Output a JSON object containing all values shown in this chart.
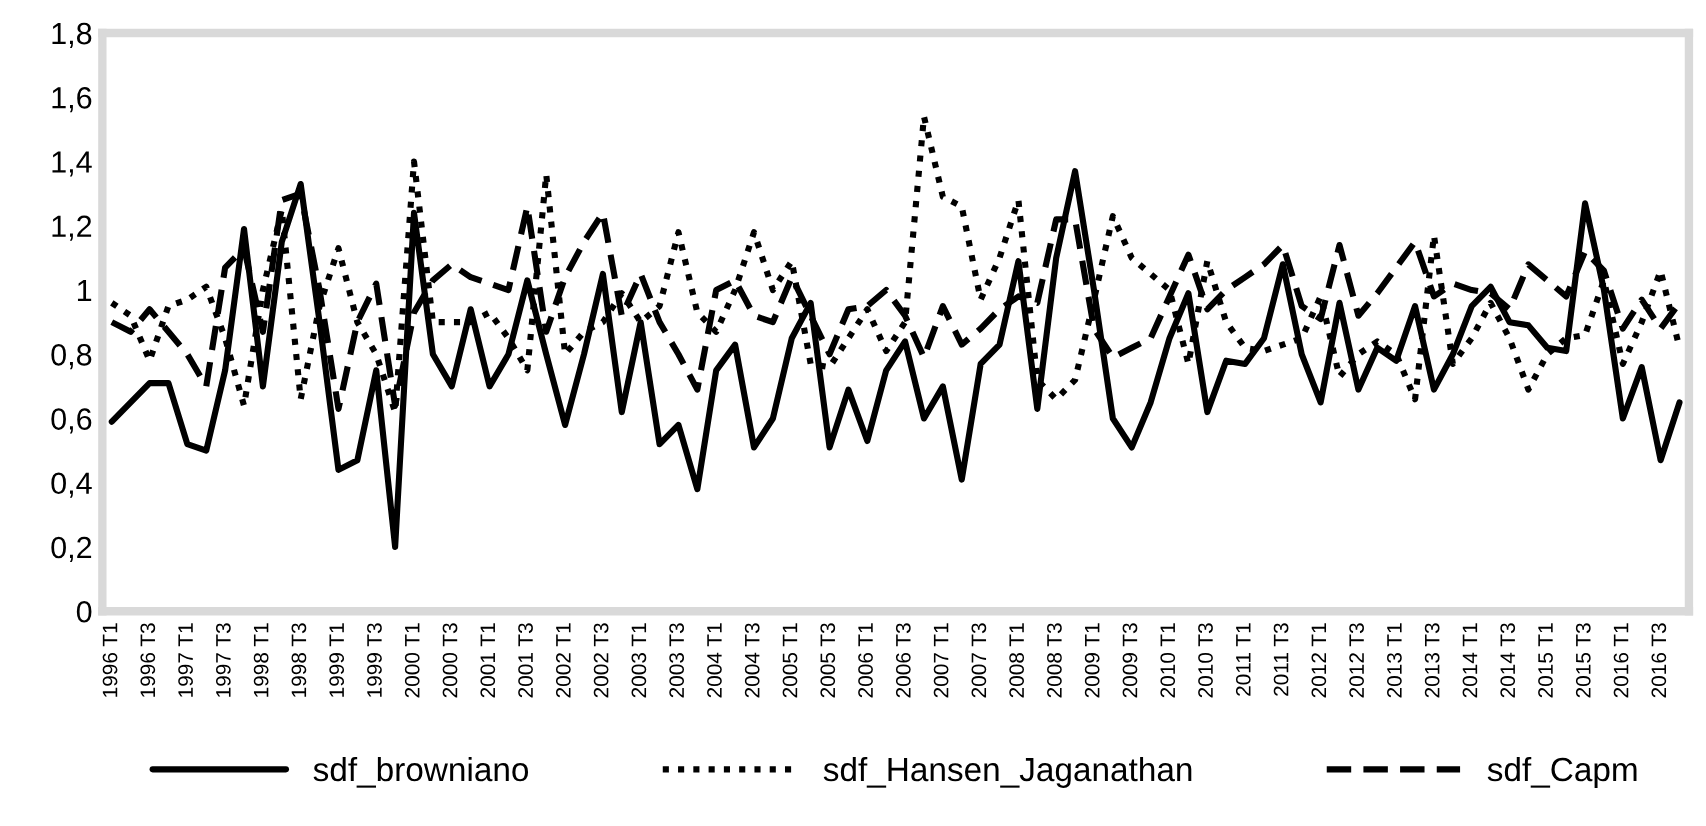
{
  "chart_data": {
    "type": "line",
    "categories": [
      "1996 T1",
      null,
      "1996 T3",
      null,
      "1997 T1",
      null,
      "1997 T3",
      null,
      "1998 T1",
      null,
      "1998 T3",
      null,
      "1999 T1",
      null,
      "1999 T3",
      null,
      "2000 T1",
      null,
      "2000 T3",
      null,
      "2001 T1",
      null,
      "2001 T3",
      null,
      "2002 T1",
      null,
      "2002 T3",
      null,
      "2003 T1",
      null,
      "2003 T3",
      null,
      "2004 T1",
      null,
      "2004 T3",
      null,
      "2005 T1",
      null,
      "2005 T3",
      null,
      "2006 T1",
      null,
      "2006 T3",
      null,
      "2007 T1",
      null,
      "2007 T3",
      null,
      "2008 T1",
      null,
      "2008 T3",
      null,
      "2009 T1",
      null,
      "2009 T3",
      null,
      "2010 T1",
      null,
      "2010 T3",
      null,
      "2011 T1",
      null,
      "2011 T3",
      null,
      "2012 T1",
      null,
      "2012 T3",
      null,
      "2013 T1",
      null,
      "2013 T3",
      null,
      "2014 T1",
      null,
      "2014 T3",
      null,
      "2015 T1",
      null,
      "2015 T3",
      null,
      "2016 T1",
      null,
      "2016 T3",
      null
    ],
    "series": [
      {
        "name": "sdf_browniano",
        "color": "#000000",
        "line_style": "solid",
        "values": [
          0.59,
          0.65,
          0.71,
          0.71,
          0.52,
          0.5,
          0.75,
          1.19,
          0.7,
          1.15,
          1.33,
          0.9,
          0.44,
          0.47,
          0.75,
          0.2,
          1.24,
          0.8,
          0.7,
          0.94,
          0.7,
          0.8,
          1.03,
          0.8,
          0.58,
          0.8,
          1.05,
          0.62,
          0.9,
          0.52,
          0.58,
          0.38,
          0.75,
          0.83,
          0.51,
          0.6,
          0.85,
          0.96,
          0.51,
          0.69,
          0.53,
          0.75,
          0.84,
          0.6,
          0.7,
          0.41,
          0.77,
          0.83,
          1.09,
          0.63,
          1.1,
          1.37,
          1.0,
          0.6,
          0.51,
          0.65,
          0.85,
          0.99,
          0.62,
          0.78,
          0.77,
          0.85,
          1.08,
          0.8,
          0.65,
          0.96,
          0.69,
          0.82,
          0.78,
          0.95,
          0.69,
          0.8,
          0.95,
          1.01,
          0.9,
          0.89,
          0.82,
          0.81,
          1.27,
          1.0,
          0.6,
          0.76,
          0.47,
          0.65
        ]
      },
      {
        "name": "sdf_Hansen_Jaganathan",
        "color": "#000000",
        "line_style": "dotted",
        "values": [
          0.96,
          0.92,
          0.78,
          0.95,
          0.97,
          1.01,
          0.85,
          0.64,
          1.0,
          1.25,
          0.66,
          0.95,
          1.13,
          0.9,
          0.8,
          0.62,
          1.4,
          0.9,
          0.9,
          0.9,
          0.93,
          0.85,
          0.75,
          1.36,
          0.8,
          0.87,
          0.9,
          0.99,
          0.9,
          0.95,
          1.18,
          0.93,
          0.87,
          1.0,
          1.18,
          1.0,
          1.09,
          0.77,
          0.76,
          0.85,
          0.94,
          0.81,
          0.9,
          1.54,
          1.29,
          1.26,
          0.97,
          1.1,
          1.28,
          0.72,
          0.66,
          0.72,
          0.97,
          1.23,
          1.1,
          1.05,
          1.0,
          0.77,
          1.09,
          0.9,
          0.82,
          0.81,
          0.83,
          0.85,
          0.98,
          0.73,
          0.8,
          0.84,
          0.8,
          0.66,
          1.17,
          0.77,
          0.85,
          0.96,
          0.85,
          0.69,
          0.8,
          0.85,
          0.86,
          1.03,
          0.77,
          0.9,
          1.06,
          0.82
        ]
      },
      {
        "name": "sdf_Capm",
        "color": "#000000",
        "line_style": "dashed",
        "values": [
          0.9,
          0.87,
          0.94,
          0.87,
          0.8,
          0.7,
          1.07,
          1.13,
          0.87,
          1.28,
          1.3,
          1.0,
          0.63,
          0.9,
          1.02,
          0.64,
          0.93,
          1.03,
          1.08,
          1.04,
          1.02,
          1.0,
          1.26,
          0.87,
          1.04,
          1.15,
          1.24,
          0.92,
          1.05,
          0.9,
          0.8,
          0.69,
          1.0,
          1.03,
          0.92,
          0.9,
          1.04,
          0.92,
          0.8,
          0.94,
          0.95,
          1.0,
          0.92,
          0.79,
          0.95,
          0.83,
          0.88,
          0.94,
          0.98,
          0.96,
          1.22,
          1.22,
          0.88,
          0.79,
          0.82,
          0.85,
          0.98,
          1.11,
          0.94,
          1.0,
          1.04,
          1.08,
          1.14,
          0.95,
          0.91,
          1.14,
          0.92,
          0.99,
          1.07,
          1.15,
          0.98,
          1.02,
          1.0,
          0.99,
          0.94,
          1.08,
          1.03,
          0.98,
          1.12,
          1.06,
          0.88,
          0.97,
          0.88,
          0.96
        ]
      }
    ],
    "ylim": [
      0,
      1.8
    ],
    "yticks": [
      0,
      {
        "value": 0.2,
        "label": "0,2"
      },
      {
        "value": 0.4,
        "label": "0,4"
      },
      {
        "value": 0.6,
        "label": "0,6"
      },
      {
        "value": 0.8,
        "label": "0,8"
      },
      1,
      {
        "value": 1.2,
        "label": "1,2"
      },
      {
        "value": 1.4,
        "label": "1,4"
      },
      {
        "value": 1.6,
        "label": "1,6"
      },
      {
        "value": 1.8,
        "label": "1,8"
      }
    ],
    "grid": false,
    "legend": "bottom",
    "marker": "none"
  }
}
